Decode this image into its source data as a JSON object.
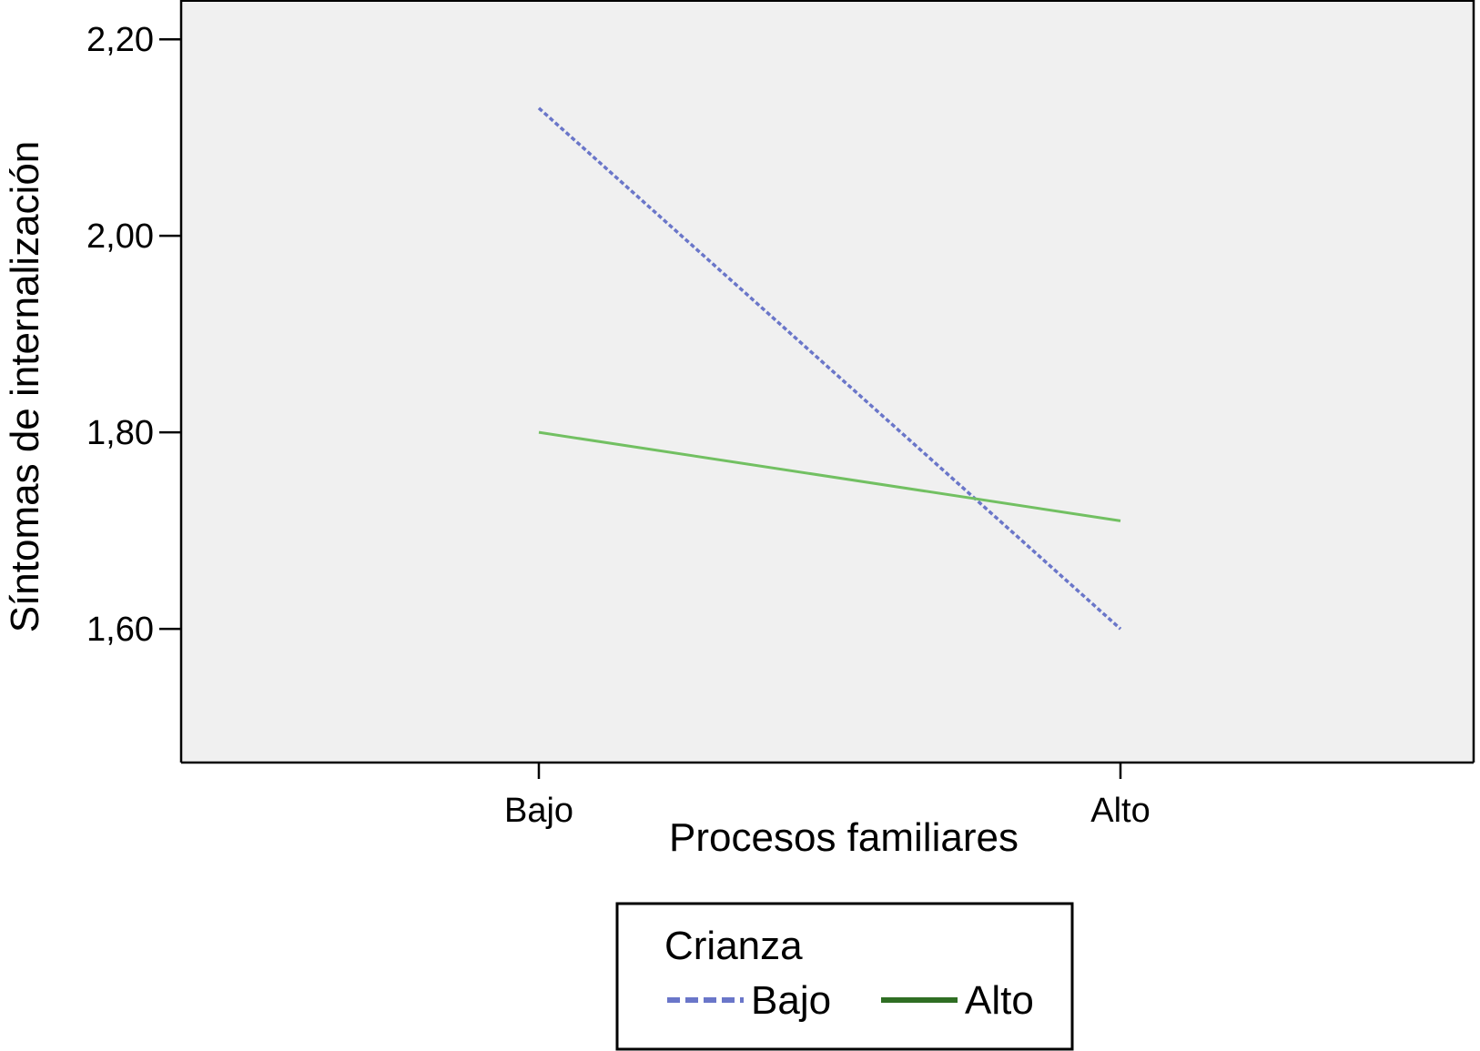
{
  "chart_data": {
    "type": "line",
    "xlabel": "Procesos familiares",
    "ylabel": "Síntomas de internalización",
    "categories": [
      "Bajo",
      "Alto"
    ],
    "ylim": [
      1.464,
      2.24
    ],
    "yticks": [
      "1,60",
      "1,80",
      "2,00",
      "2,20"
    ],
    "ytick_values": [
      1.6,
      1.8,
      2.0,
      2.2
    ],
    "grid": false,
    "legend": {
      "title": "Crianza",
      "position": "bottom-center"
    },
    "series": [
      {
        "name": "Bajo",
        "values": [
          2.13,
          1.6
        ],
        "color": "#6a76c9",
        "style": "dashed"
      },
      {
        "name": "Alto",
        "values": [
          1.8,
          1.71
        ],
        "color": "#72c062",
        "style": "solid",
        "legend_color": "#2f6e23"
      }
    ]
  }
}
